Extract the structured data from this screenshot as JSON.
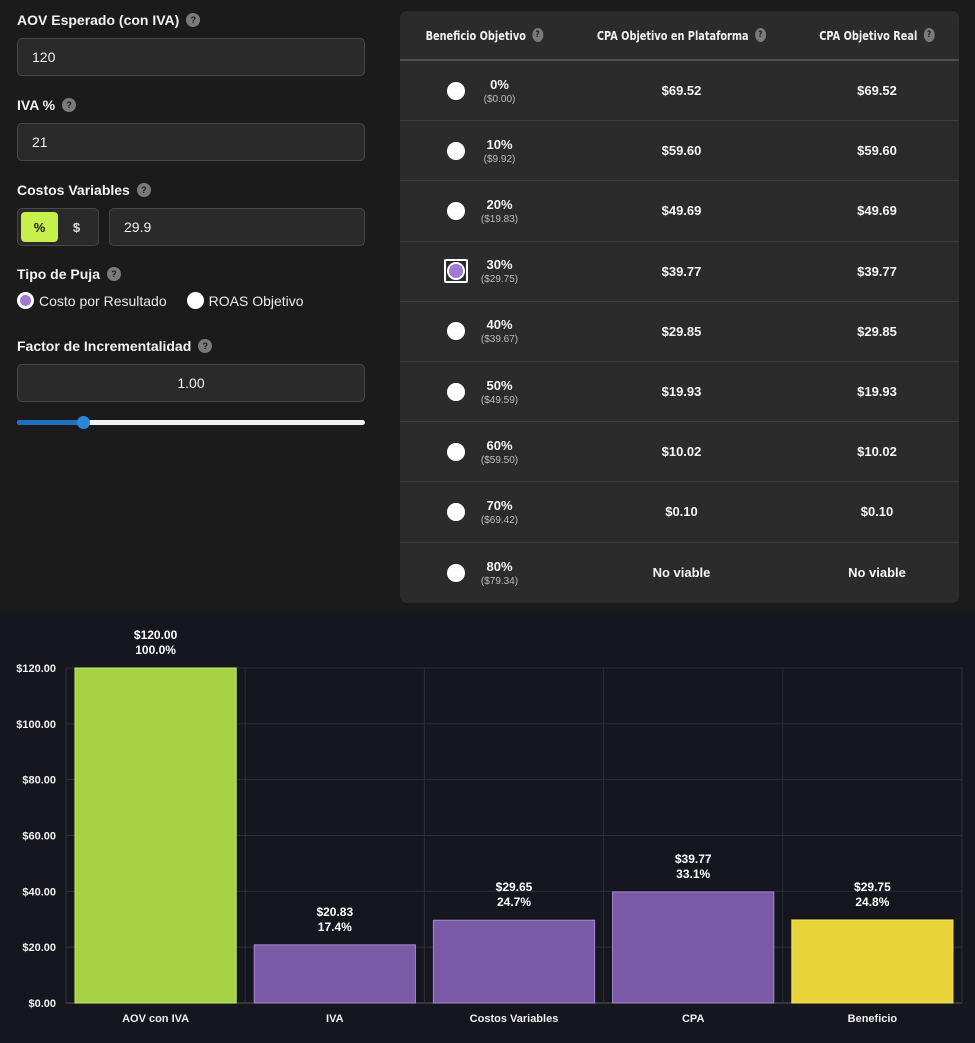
{
  "form": {
    "aov_label": "AOV Esperado (con IVA)",
    "aov_value": "120",
    "iva_label": "IVA %",
    "iva_value": "21",
    "costos_label": "Costos Variables",
    "costos_mode_pct": "%",
    "costos_mode_abs": "$",
    "costos_value": "29.9",
    "puja_label": "Tipo de Puja",
    "puja_option_1": "Costo por Resultado",
    "puja_option_2": "ROAS Objetivo",
    "incr_label": "Factor de Incrementalidad",
    "incr_value": "1.00",
    "slider_fraction": 0.19,
    "help_glyph": "?"
  },
  "table": {
    "headers": [
      "Beneficio Objetivo",
      "CPA Objetivo en Plataforma",
      "CPA Objetivo Real"
    ],
    "selected_index": 3,
    "rows": [
      {
        "pct": "0%",
        "amount": "($0.00)",
        "cpa_platform": "$69.52",
        "cpa_real": "$69.52"
      },
      {
        "pct": "10%",
        "amount": "($9.92)",
        "cpa_platform": "$59.60",
        "cpa_real": "$59.60"
      },
      {
        "pct": "20%",
        "amount": "($19.83)",
        "cpa_platform": "$49.69",
        "cpa_real": "$49.69"
      },
      {
        "pct": "30%",
        "amount": "($29.75)",
        "cpa_platform": "$39.77",
        "cpa_real": "$39.77"
      },
      {
        "pct": "40%",
        "amount": "($39.67)",
        "cpa_platform": "$29.85",
        "cpa_real": "$29.85"
      },
      {
        "pct": "50%",
        "amount": "($49.59)",
        "cpa_platform": "$19.93",
        "cpa_real": "$19.93"
      },
      {
        "pct": "60%",
        "amount": "($59.50)",
        "cpa_platform": "$10.02",
        "cpa_real": "$10.02"
      },
      {
        "pct": "70%",
        "amount": "($69.42)",
        "cpa_platform": "$0.10",
        "cpa_real": "$0.10"
      },
      {
        "pct": "80%",
        "amount": "($79.34)",
        "cpa_platform": "No viable",
        "cpa_real": "No viable"
      }
    ]
  },
  "chart_data": {
    "type": "bar",
    "categories": [
      "AOV con IVA",
      "IVA",
      "Costos Variables",
      "CPA",
      "Beneficio"
    ],
    "values": [
      120.0,
      20.83,
      29.65,
      39.77,
      29.75
    ],
    "value_labels": [
      "$120.00",
      "$20.83",
      "$29.65",
      "$39.77",
      "$29.75"
    ],
    "pct_labels": [
      "100.0%",
      "17.4%",
      "24.7%",
      "33.1%",
      "24.8%"
    ],
    "colors": [
      "#a6d145",
      "#7a5aa6",
      "#7a5aa6",
      "#7a5aa6",
      "#e8d43a"
    ],
    "yticks": [
      "$0.00",
      "$20.00",
      "$40.00",
      "$60.00",
      "$80.00",
      "$100.00",
      "$120.00"
    ],
    "ylim": [
      0,
      120
    ],
    "grid": true
  }
}
